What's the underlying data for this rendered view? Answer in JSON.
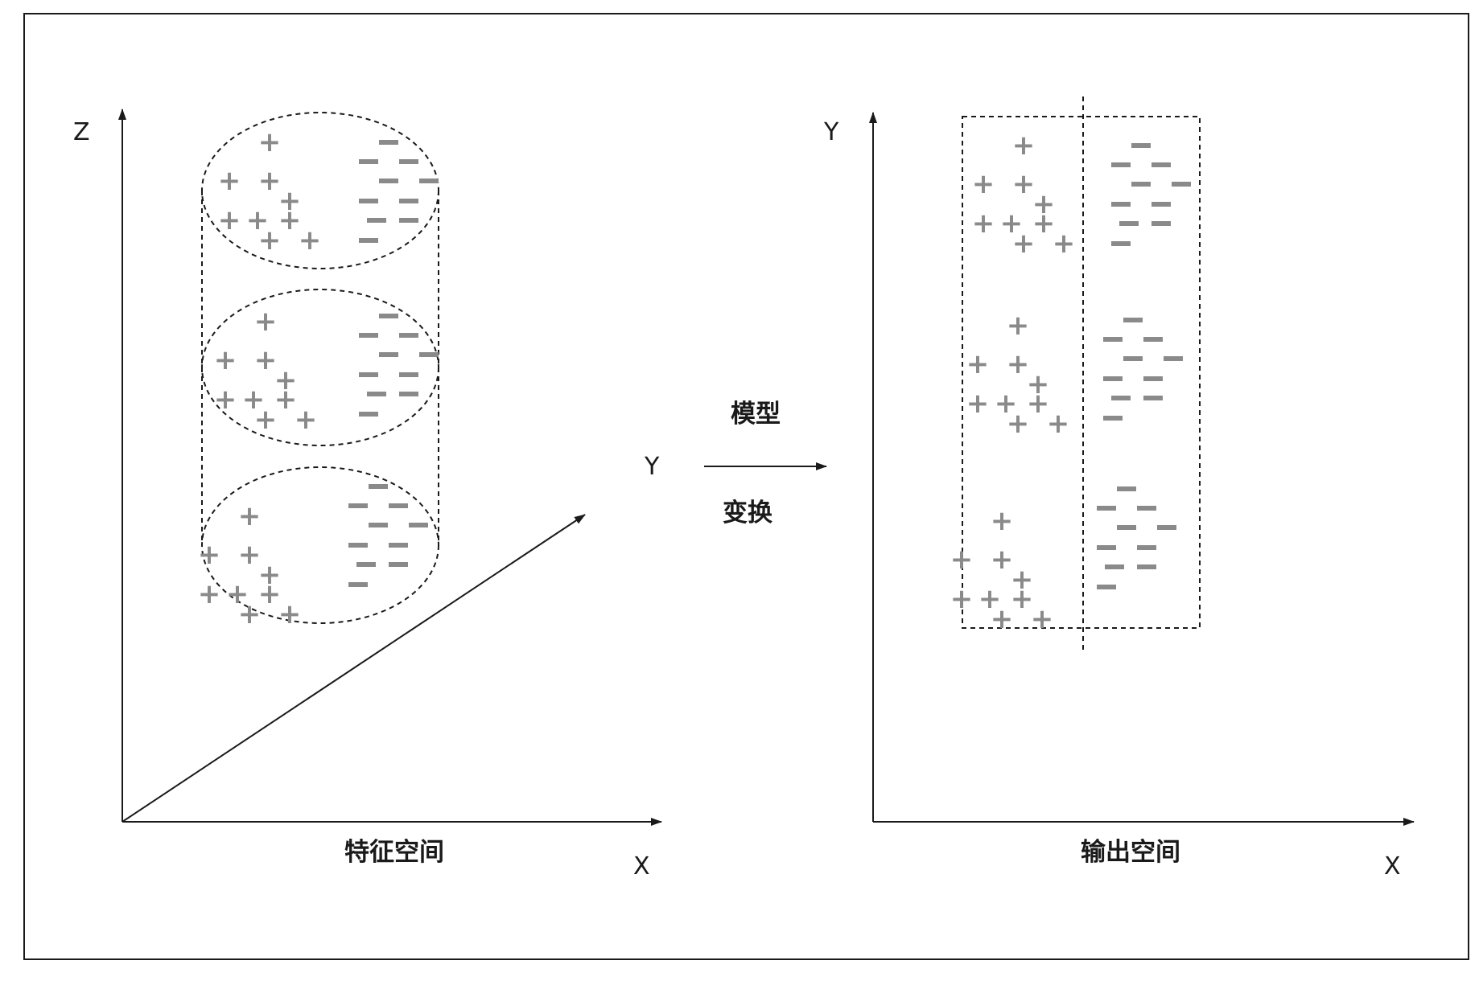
{
  "feature_space": {
    "caption": "特征空间",
    "axis_z": "Z",
    "axis_x": "X",
    "axis_y": "Y"
  },
  "transform": {
    "label_top": "模型",
    "label_bottom": "变换"
  },
  "output_space": {
    "caption": "输出空间",
    "axis_y": "Y",
    "axis_x": "X"
  },
  "symbols": {
    "positive": "+",
    "negative": "−"
  },
  "colors": {
    "line": "#1a1a1a",
    "marker": "#8a8a8a",
    "frame": "#1a1a1a"
  }
}
